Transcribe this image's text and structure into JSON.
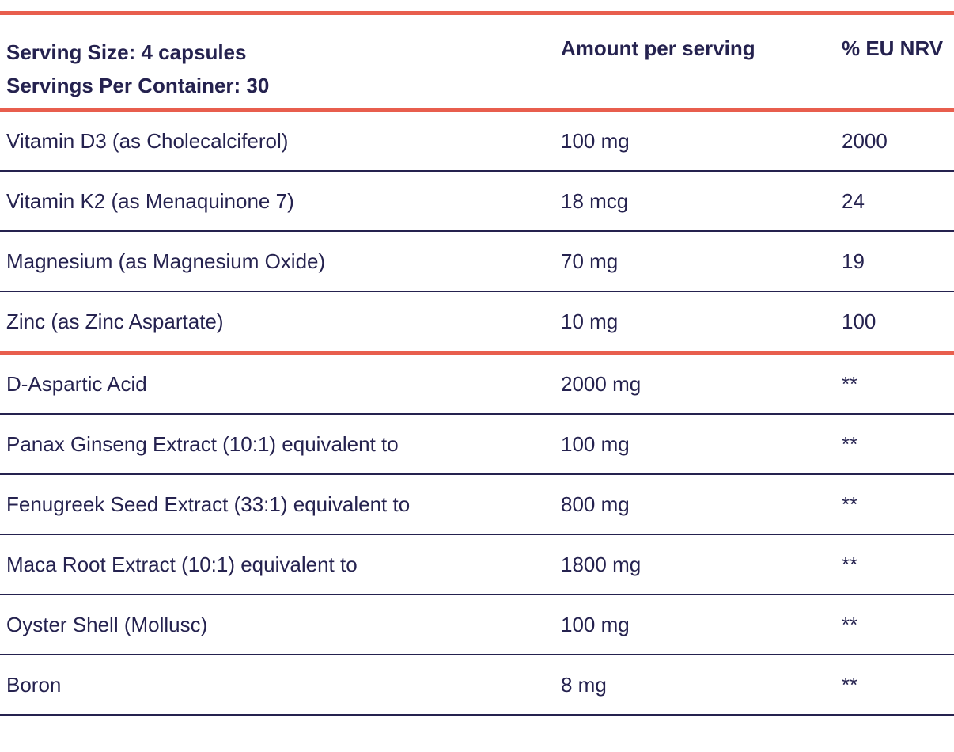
{
  "colors": {
    "accent": "#e85e4d",
    "text": "#25224f",
    "divider": "#25224f"
  },
  "header": {
    "serving_size": "Serving Size: 4 capsules",
    "servings_per_container": "Servings Per Container: 30",
    "amount_col": "Amount per serving",
    "nrv_col": "% EU NRV"
  },
  "vitamins": [
    {
      "name": "Vitamin D3 (as Cholecalciferol)",
      "amount": "100 mg",
      "nrv": "2000"
    },
    {
      "name": "Vitamin K2 (as Menaquinone 7)",
      "amount": "18 mcg",
      "nrv": "24"
    },
    {
      "name": "Magnesium (as Magnesium Oxide)",
      "amount": "70 mg",
      "nrv": "19"
    },
    {
      "name": "Zinc (as Zinc Aspartate)",
      "amount": "10 mg",
      "nrv": "100"
    }
  ],
  "others": [
    {
      "name": "D-Aspartic Acid",
      "amount": "2000 mg",
      "nrv": "**"
    },
    {
      "name": "Panax Ginseng Extract (10:1) equivalent to",
      "amount": "100 mg",
      "nrv": "**"
    },
    {
      "name": "Fenugreek Seed Extract (33:1) equivalent to",
      "amount": "800 mg",
      "nrv": "**"
    },
    {
      "name": "Maca Root Extract (10:1) equivalent to",
      "amount": "1800 mg",
      "nrv": "**"
    },
    {
      "name": "Oyster Shell (Mollusc)",
      "amount": "100 mg",
      "nrv": "**"
    },
    {
      "name": "Boron",
      "amount": "8 mg",
      "nrv": "**"
    }
  ]
}
